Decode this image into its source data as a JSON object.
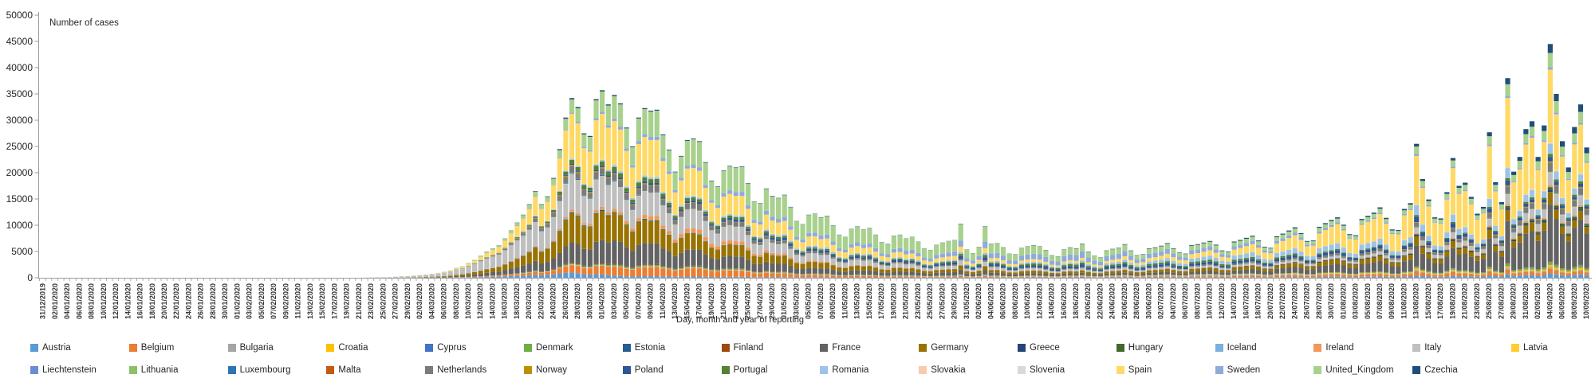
{
  "page": {
    "background": "#ffffff"
  },
  "chart_data": {
    "type": "stacked-bar",
    "title": "Number of cases",
    "xlabel": "Day, month and year of reporting",
    "grid": false,
    "legend_position": "bottom",
    "y_axis": {
      "min": 0,
      "max": 50000,
      "tick_interval": 5000,
      "tick_labels": [
        "0",
        "5000",
        "10000",
        "15000",
        "20000",
        "25000",
        "30000",
        "35000",
        "40000",
        "45000",
        "50000"
      ]
    },
    "x_axis": {
      "start_date": "31/12/2019",
      "end_date": "10/09/2020",
      "days": 255,
      "label_every_n_days": 2,
      "tick_labels": [
        "31/12/2019",
        "02/01/2020",
        "04/01/2020",
        "06/01/2020",
        "08/01/2020",
        "10/01/2020",
        "12/01/2020",
        "14/01/2020",
        "16/01/2020",
        "18/01/2020",
        "20/01/2020",
        "22/01/2020",
        "24/01/2020",
        "26/01/2020",
        "28/01/2020",
        "30/01/2020",
        "01/02/2020",
        "03/02/2020",
        "05/02/2020",
        "07/02/2020",
        "09/02/2020",
        "11/02/2020",
        "13/02/2020",
        "15/02/2020",
        "17/02/2020",
        "19/02/2020",
        "21/02/2020",
        "23/02/2020",
        "25/02/2020",
        "27/02/2020",
        "29/02/2020",
        "02/03/2020",
        "04/03/2020",
        "06/03/2020",
        "08/03/2020",
        "10/03/2020",
        "12/03/2020",
        "14/03/2020",
        "16/03/2020",
        "18/03/2020",
        "20/03/2020",
        "22/03/2020",
        "24/03/2020",
        "26/03/2020",
        "28/03/2020",
        "30/03/2020",
        "01/04/2020",
        "03/04/2020",
        "05/04/2020",
        "07/04/2020",
        "09/04/2020",
        "11/04/2020",
        "13/04/2020",
        "15/04/2020",
        "17/04/2020",
        "19/04/2020",
        "21/04/2020",
        "23/04/2020",
        "25/04/2020",
        "27/04/2020",
        "29/04/2020",
        "01/05/2020",
        "03/05/2020",
        "05/05/2020",
        "07/05/2020",
        "09/05/2020",
        "11/05/2020",
        "13/05/2020",
        "15/05/2020",
        "17/05/2020",
        "19/05/2020",
        "21/05/2020",
        "23/05/2020",
        "25/05/2020",
        "27/05/2020",
        "29/05/2020",
        "31/05/2020",
        "02/06/2020",
        "04/06/2020",
        "06/06/2020",
        "08/06/2020",
        "10/06/2020",
        "12/06/2020",
        "14/06/2020",
        "16/06/2020",
        "18/06/2020",
        "20/06/2020",
        "22/06/2020",
        "24/06/2020",
        "26/06/2020",
        "28/06/2020",
        "30/06/2020",
        "02/07/2020",
        "04/07/2020",
        "06/07/2020",
        "08/07/2020",
        "10/07/2020",
        "12/07/2020",
        "14/07/2020",
        "16/07/2020",
        "18/07/2020",
        "20/07/2020",
        "22/07/2020",
        "24/07/2020",
        "26/07/2020",
        "28/07/2020",
        "30/07/2020",
        "01/08/2020",
        "03/08/2020",
        "05/08/2020",
        "07/08/2020",
        "09/08/2020",
        "11/08/2020",
        "13/08/2020",
        "15/08/2020",
        "17/08/2020",
        "19/08/2020",
        "21/08/2020",
        "23/08/2020",
        "25/08/2020",
        "27/08/2020",
        "29/08/2020",
        "31/08/2020",
        "02/09/2020",
        "04/09/2020",
        "06/09/2020",
        "08/09/2020",
        "10/09/2020"
      ]
    },
    "daily_totals": [
      0,
      0,
      0,
      0,
      0,
      0,
      0,
      0,
      0,
      0,
      0,
      0,
      0,
      0,
      0,
      0,
      0,
      0,
      0,
      0,
      0,
      0,
      0,
      0,
      2,
      3,
      1,
      1,
      4,
      2,
      3,
      5,
      6,
      2,
      3,
      4,
      3,
      2,
      4,
      8,
      3,
      2,
      3,
      2,
      4,
      3,
      5,
      4,
      3,
      2,
      6,
      4,
      9,
      30,
      68,
      95,
      105,
      130,
      220,
      280,
      330,
      420,
      520,
      640,
      780,
      950,
      1150,
      1400,
      1900,
      2200,
      2800,
      3400,
      4200,
      5000,
      5600,
      6200,
      7500,
      9000,
      10500,
      12000,
      14000,
      16500,
      14000,
      15500,
      19000,
      24500,
      30500,
      34200,
      32500,
      27500,
      27000,
      34000,
      35700,
      33000,
      34800,
      33200,
      28600,
      25000,
      30500,
      32300,
      31800,
      32000,
      27300,
      24400,
      20200,
      23200,
      26200,
      26500,
      26000,
      22000,
      18500,
      17400,
      20400,
      21300,
      21000,
      21200,
      18000,
      14500,
      14200,
      17000,
      15600,
      15200,
      15800,
      13500,
      10800,
      10200,
      12000,
      12200,
      11500,
      11800,
      10000,
      8200,
      7800,
      9300,
      9800,
      9200,
      9500,
      8200,
      6800,
      6500,
      8000,
      8200,
      7500,
      7800,
      6900,
      5600,
      5300,
      6300,
      6700,
      7000,
      7200,
      10300,
      5400,
      4700,
      5900,
      9800,
      6500,
      6600,
      5800,
      4600,
      4500,
      5700,
      6000,
      6200,
      6000,
      5300,
      4300,
      4100,
      5400,
      5800,
      5600,
      6500,
      5000,
      4200,
      3900,
      5200,
      5500,
      5700,
      6400,
      5200,
      4300,
      4500,
      5600,
      5800,
      6100,
      6600,
      5600,
      4800,
      4600,
      6200,
      6400,
      6700,
      7000,
      6300,
      5200,
      5000,
      6900,
      7200,
      7600,
      8000,
      7100,
      5900,
      5700,
      7900,
      8400,
      9000,
      9600,
      8500,
      7000,
      7100,
      9700,
      10400,
      11000,
      11500,
      10100,
      8300,
      8100,
      11200,
      11800,
      12400,
      13400,
      11400,
      9200,
      9100,
      13100,
      14200,
      25500,
      18800,
      14900,
      11500,
      11300,
      16300,
      22800,
      17500,
      18100,
      15400,
      12200,
      13500,
      27700,
      18200,
      14400,
      38000,
      20200,
      23000,
      28300,
      29800,
      23000,
      29000,
      44500,
      35000,
      26000,
      21000,
      28700,
      33000,
      24800
    ],
    "composition_keyframe_days": [
      55,
      65,
      75,
      85,
      95,
      110,
      130,
      150,
      170,
      195,
      215,
      232,
      245,
      254
    ],
    "composition_shares": {
      "Austria": [
        0.01,
        0.015,
        0.035,
        0.035,
        0.01,
        0.008,
        0.008,
        0.008,
        0.01,
        0.012,
        0.015,
        0.015,
        0.018,
        0.02
      ],
      "Belgium": [
        0.005,
        0.015,
        0.03,
        0.04,
        0.05,
        0.06,
        0.03,
        0.02,
        0.015,
        0.025,
        0.035,
        0.03,
        0.02,
        0.02
      ],
      "Bulgaria": [
        0.0,
        0.001,
        0.002,
        0.002,
        0.002,
        0.003,
        0.005,
        0.01,
        0.02,
        0.035,
        0.01,
        0.008,
        0.006,
        0.006
      ],
      "Croatia": [
        0.0,
        0.002,
        0.002,
        0.002,
        0.002,
        0.002,
        0.002,
        0.002,
        0.005,
        0.012,
        0.012,
        0.01,
        0.01,
        0.012
      ],
      "Cyprus": [
        0.0,
        0.001,
        0.001,
        0.001,
        0.001,
        0.001,
        0.001,
        0.001,
        0.001,
        0.001,
        0.002,
        0.002,
        0.002,
        0.002
      ],
      "Denmark": [
        0.005,
        0.01,
        0.008,
        0.005,
        0.006,
        0.007,
        0.008,
        0.008,
        0.008,
        0.005,
        0.008,
        0.01,
        0.01,
        0.012
      ],
      "Estonia": [
        0.0,
        0.003,
        0.004,
        0.003,
        0.002,
        0.002,
        0.002,
        0.002,
        0.001,
        0.001,
        0.001,
        0.001,
        0.001,
        0.002
      ],
      "Finland": [
        0.005,
        0.005,
        0.005,
        0.004,
        0.004,
        0.004,
        0.006,
        0.004,
        0.003,
        0.002,
        0.002,
        0.002,
        0.002,
        0.003
      ],
      "France": [
        0.03,
        0.12,
        0.12,
        0.11,
        0.13,
        0.11,
        0.08,
        0.08,
        0.06,
        0.08,
        0.13,
        0.16,
        0.23,
        0.27
      ],
      "Germany": [
        0.03,
        0.12,
        0.15,
        0.17,
        0.15,
        0.1,
        0.08,
        0.07,
        0.06,
        0.07,
        0.07,
        0.06,
        0.055,
        0.05
      ],
      "Greece": [
        0.0,
        0.003,
        0.003,
        0.003,
        0.002,
        0.002,
        0.002,
        0.002,
        0.002,
        0.006,
        0.012,
        0.01,
        0.008,
        0.008
      ],
      "Hungary": [
        0.0,
        0.001,
        0.002,
        0.002,
        0.003,
        0.003,
        0.003,
        0.002,
        0.002,
        0.002,
        0.003,
        0.005,
        0.012,
        0.015
      ],
      "Iceland": [
        0.0,
        0.005,
        0.01,
        0.006,
        0.003,
        0.001,
        0.001,
        0.001,
        0.001,
        0.001,
        0.002,
        0.002,
        0.002,
        0.002
      ],
      "Ireland": [
        0.0,
        0.005,
        0.008,
        0.01,
        0.015,
        0.035,
        0.012,
        0.005,
        0.004,
        0.004,
        0.005,
        0.008,
        0.008,
        0.008
      ],
      "Italy": [
        0.85,
        0.55,
        0.38,
        0.22,
        0.14,
        0.13,
        0.1,
        0.07,
        0.05,
        0.04,
        0.03,
        0.04,
        0.05,
        0.055
      ],
      "Latvia": [
        0.0,
        0.001,
        0.001,
        0.001,
        0.001,
        0.001,
        0.001,
        0.001,
        0.001,
        0.001,
        0.001,
        0.001,
        0.001,
        0.001
      ],
      "Liechtenstein": [
        0.0,
        0.001,
        0.001,
        0.0,
        0.0,
        0.0,
        0.0,
        0.0,
        0.0,
        0.0,
        0.0,
        0.0,
        0.0,
        0.0
      ],
      "Lithuania": [
        0.0,
        0.001,
        0.002,
        0.002,
        0.002,
        0.002,
        0.002,
        0.002,
        0.002,
        0.002,
        0.002,
        0.002,
        0.003,
        0.003
      ],
      "Luxembourg": [
        0.0,
        0.002,
        0.006,
        0.006,
        0.004,
        0.002,
        0.002,
        0.002,
        0.004,
        0.008,
        0.004,
        0.003,
        0.002,
        0.002
      ],
      "Malta": [
        0.0,
        0.001,
        0.001,
        0.001,
        0.001,
        0.001,
        0.001,
        0.001,
        0.001,
        0.002,
        0.003,
        0.002,
        0.001,
        0.001
      ],
      "Netherlands": [
        0.01,
        0.02,
        0.03,
        0.035,
        0.035,
        0.04,
        0.025,
        0.02,
        0.015,
        0.015,
        0.025,
        0.028,
        0.035,
        0.04
      ],
      "Norway": [
        0.005,
        0.01,
        0.012,
        0.008,
        0.005,
        0.003,
        0.003,
        0.002,
        0.002,
        0.003,
        0.004,
        0.005,
        0.005,
        0.006
      ],
      "Poland": [
        0.0,
        0.002,
        0.004,
        0.006,
        0.01,
        0.015,
        0.035,
        0.05,
        0.065,
        0.055,
        0.045,
        0.035,
        0.02,
        0.018
      ],
      "Portugal": [
        0.0,
        0.003,
        0.008,
        0.02,
        0.025,
        0.02,
        0.025,
        0.035,
        0.055,
        0.045,
        0.015,
        0.01,
        0.012,
        0.015
      ],
      "Romania": [
        0.0,
        0.003,
        0.006,
        0.006,
        0.01,
        0.012,
        0.025,
        0.03,
        0.05,
        0.1,
        0.085,
        0.06,
        0.045,
        0.04
      ],
      "Slovakia": [
        0.0,
        0.001,
        0.001,
        0.001,
        0.001,
        0.001,
        0.001,
        0.001,
        0.001,
        0.001,
        0.002,
        0.002,
        0.003,
        0.004
      ],
      "Slovenia": [
        0.0,
        0.002,
        0.002,
        0.001,
        0.001,
        0.001,
        0.001,
        0.001,
        0.001,
        0.002,
        0.002,
        0.002,
        0.002,
        0.002
      ],
      "Spain": [
        0.02,
        0.08,
        0.18,
        0.26,
        0.24,
        0.18,
        0.13,
        0.09,
        0.06,
        0.13,
        0.3,
        0.37,
        0.33,
        0.28
      ],
      "Sweden": [
        0.005,
        0.01,
        0.008,
        0.006,
        0.015,
        0.025,
        0.06,
        0.1,
        0.17,
        0.08,
        0.02,
        0.012,
        0.01,
        0.01
      ],
      "United_Kingdom": [
        0.025,
        0.04,
        0.05,
        0.06,
        0.13,
        0.19,
        0.29,
        0.28,
        0.19,
        0.095,
        0.055,
        0.05,
        0.06,
        0.065
      ],
      "Czechia": [
        0.0,
        0.005,
        0.005,
        0.008,
        0.006,
        0.005,
        0.005,
        0.005,
        0.01,
        0.02,
        0.018,
        0.02,
        0.035,
        0.045
      ]
    }
  },
  "legend": {
    "rows": [
      16,
      15
    ],
    "items": [
      {
        "label": "Austria",
        "color": "#5B9BD5"
      },
      {
        "label": "Belgium",
        "color": "#ED7D31"
      },
      {
        "label": "Bulgaria",
        "color": "#A5A5A5"
      },
      {
        "label": "Croatia",
        "color": "#FFC000"
      },
      {
        "label": "Cyprus",
        "color": "#4472C4"
      },
      {
        "label": "Denmark",
        "color": "#70AD47"
      },
      {
        "label": "Estonia",
        "color": "#255E91"
      },
      {
        "label": "Finland",
        "color": "#9E480E"
      },
      {
        "label": "France",
        "color": "#636363"
      },
      {
        "label": "Germany",
        "color": "#997300"
      },
      {
        "label": "Greece",
        "color": "#264478"
      },
      {
        "label": "Hungary",
        "color": "#43682B"
      },
      {
        "label": "Iceland",
        "color": "#7CAFDD"
      },
      {
        "label": "Ireland",
        "color": "#F1975A"
      },
      {
        "label": "Italy",
        "color": "#BFBFBF"
      },
      {
        "label": "Latvia",
        "color": "#FFCD33"
      },
      {
        "label": "Liechtenstein",
        "color": "#698ED0"
      },
      {
        "label": "Lithuania",
        "color": "#8CC168"
      },
      {
        "label": "Luxembourg",
        "color": "#2E75B6"
      },
      {
        "label": "Malta",
        "color": "#C55A11"
      },
      {
        "label": "Netherlands",
        "color": "#7B7B7B"
      },
      {
        "label": "Norway",
        "color": "#BF8F00"
      },
      {
        "label": "Poland",
        "color": "#2F5597"
      },
      {
        "label": "Portugal",
        "color": "#538135"
      },
      {
        "label": "Romania",
        "color": "#9DC3E6"
      },
      {
        "label": "Slovakia",
        "color": "#F8CBAD"
      },
      {
        "label": "Slovenia",
        "color": "#D9D9D9"
      },
      {
        "label": "Spain",
        "color": "#FFD966"
      },
      {
        "label": "Sweden",
        "color": "#8FAADC"
      },
      {
        "label": "United_Kingdom",
        "color": "#A9D18E"
      },
      {
        "label": "Czechia",
        "color": "#1F4E79"
      }
    ]
  }
}
